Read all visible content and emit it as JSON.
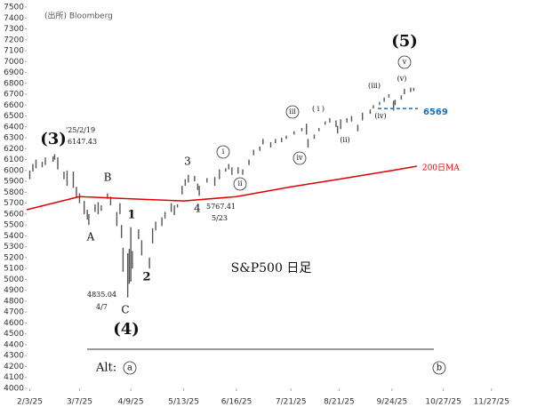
{
  "chart_data": {
    "type": "ohlc",
    "title": "S&P500 日足",
    "source": "(出所) Bloomberg",
    "xlim": [
      "2025-02-01",
      "2025-12-24"
    ],
    "xticks": [
      {
        "value": "2025-02-03",
        "label": "2/3/25"
      },
      {
        "value": "2025-03-07",
        "label": "3/7/25"
      },
      {
        "value": "2025-04-09",
        "label": "4/9/25"
      },
      {
        "value": "2025-05-13",
        "label": "5/13/25"
      },
      {
        "value": "2025-06-16",
        "label": "6/16/25"
      },
      {
        "value": "2025-07-21",
        "label": "7/21/25"
      },
      {
        "value": "2025-08-21",
        "label": "8/21/25"
      },
      {
        "value": "2025-09-24",
        "label": "9/24/25"
      },
      {
        "value": "2025-10-27",
        "label": "10/27/25"
      },
      {
        "value": "2025-11-27",
        "label": "11/27/25"
      }
    ],
    "ylim": [
      4000,
      7500
    ],
    "yticks": [
      4000,
      4100,
      4200,
      4300,
      4400,
      4500,
      4600,
      4700,
      4800,
      4900,
      5000,
      5100,
      5200,
      5300,
      5400,
      5500,
      5600,
      5700,
      5800,
      5900,
      6000,
      6100,
      6200,
      6300,
      6400,
      6500,
      6600,
      6700,
      6800,
      6900,
      7000,
      7100,
      7200,
      7300,
      7400,
      7500
    ],
    "bars": {
      "color": "#555555",
      "x": [
        "2025-02-03",
        "2025-02-05",
        "2025-02-07",
        "2025-02-11",
        "2025-02-13",
        "2025-02-18",
        "2025-02-19",
        "2025-02-21",
        "2025-02-25",
        "2025-02-27",
        "2025-03-03",
        "2025-03-05",
        "2025-03-07",
        "2025-03-10",
        "2025-03-12",
        "2025-03-13",
        "2025-03-17",
        "2025-03-19",
        "2025-03-21",
        "2025-03-25",
        "2025-03-27",
        "2025-03-31",
        "2025-04-02",
        "2025-04-03",
        "2025-04-04",
        "2025-04-07",
        "2025-04-08",
        "2025-04-09",
        "2025-04-10",
        "2025-04-14",
        "2025-04-16",
        "2025-04-21",
        "2025-04-23",
        "2025-04-25",
        "2025-04-29",
        "2025-05-01",
        "2025-05-05",
        "2025-05-07",
        "2025-05-09",
        "2025-05-12",
        "2025-05-14",
        "2025-05-16",
        "2025-05-20",
        "2025-05-22",
        "2025-05-23",
        "2025-05-28",
        "2025-06-02",
        "2025-06-05",
        "2025-06-09",
        "2025-06-11",
        "2025-06-13",
        "2025-06-17",
        "2025-06-20",
        "2025-06-24",
        "2025-06-27",
        "2025-07-01",
        "2025-07-03",
        "2025-07-08",
        "2025-07-11",
        "2025-07-15",
        "2025-07-18",
        "2025-07-23",
        "2025-07-28",
        "2025-07-31",
        "2025-08-01",
        "2025-08-05",
        "2025-08-08",
        "2025-08-12",
        "2025-08-15",
        "2025-08-19",
        "2025-08-20",
        "2025-08-22",
        "2025-08-26",
        "2025-08-29",
        "2025-09-02",
        "2025-09-05",
        "2025-09-10",
        "2025-09-12",
        "2025-09-16",
        "2025-09-19",
        "2025-09-22",
        "2025-09-25",
        "2025-09-26",
        "2025-09-30",
        "2025-10-02",
        "2025-10-06",
        "2025-10-08"
      ],
      "low": [
        5920,
        5990,
        6020,
        6030,
        6050,
        6080,
        6100,
        6010,
        5920,
        5860,
        5840,
        5750,
        5700,
        5600,
        5550,
        5500,
        5620,
        5600,
        5630,
        5740,
        5680,
        5490,
        5600,
        5380,
        5070,
        4835,
        4960,
        4980,
        5100,
        5370,
        5220,
        5100,
        5330,
        5450,
        5490,
        5560,
        5620,
        5590,
        5660,
        5780,
        5860,
        5890,
        5900,
        5820,
        5767,
        5890,
        5860,
        5920,
        5990,
        6010,
        5960,
        5970,
        5960,
        6050,
        6140,
        6180,
        6240,
        6210,
        6250,
        6260,
        6290,
        6330,
        6360,
        6330,
        6210,
        6290,
        6360,
        6420,
        6440,
        6400,
        6340,
        6380,
        6440,
        6450,
        6360,
        6460,
        6520,
        6570,
        6600,
        6630,
        6670,
        6550,
        6600,
        6650,
        6700,
        6720,
        6730
      ],
      "high": [
        6000,
        6060,
        6100,
        6080,
        6120,
        6130,
        6150,
        6120,
        5990,
        6000,
        5990,
        5850,
        5790,
        5720,
        5640,
        5600,
        5690,
        5710,
        5680,
        5790,
        5760,
        5620,
        5700,
        5500,
        5290,
        5240,
        5280,
        5480,
        5260,
        5460,
        5360,
        5200,
        5470,
        5530,
        5570,
        5620,
        5700,
        5680,
        5690,
        5860,
        5920,
        5960,
        5950,
        5880,
        5860,
        5930,
        5940,
        6010,
        6020,
        6060,
        6030,
        6030,
        6010,
        6100,
        6190,
        6220,
        6290,
        6260,
        6290,
        6300,
        6320,
        6360,
        6390,
        6430,
        6290,
        6330,
        6390,
        6450,
        6480,
        6460,
        6410,
        6470,
        6480,
        6500,
        6420,
        6530,
        6560,
        6600,
        6630,
        6670,
        6700,
        6640,
        6650,
        6690,
        6750,
        6760,
        6760
      ]
    },
    "series": [
      {
        "name": "200日MA",
        "color": "#e00000",
        "x": [
          "2025-02-01",
          "2025-03-07",
          "2025-04-09",
          "2025-05-13",
          "2025-06-16",
          "2025-07-21",
          "2025-08-21",
          "2025-09-24",
          "2025-10-10"
        ],
        "values": [
          5640,
          5760,
          5740,
          5720,
          5760,
          5850,
          5920,
          6000,
          6040
        ]
      }
    ],
    "support_level": 6569,
    "annotations": [
      "(5)",
      "v",
      "(v)",
      "(iii)",
      "(iv)",
      "iii",
      "( i )",
      "iv",
      "(ii)",
      "i",
      "ii",
      "3",
      "4",
      "5767.41",
      "5/23",
      "(3)",
      "'25/2/19",
      "6147.43",
      "B",
      "A",
      "1",
      "2",
      "C",
      "4835.04",
      "4/7",
      "(4)",
      "Alt:",
      "a",
      "b"
    ]
  }
}
